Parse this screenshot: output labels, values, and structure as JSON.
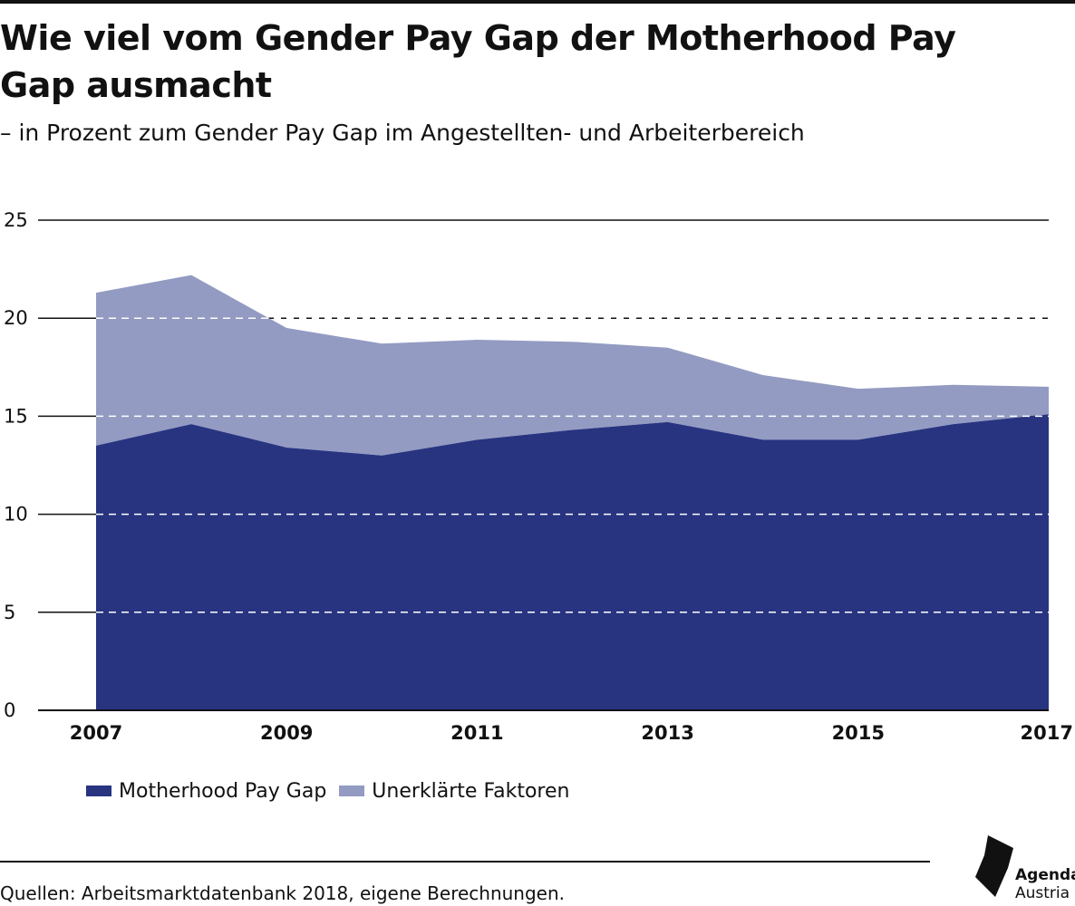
{
  "title": "Wie viel vom Gender Pay Gap der Motherhood Pay Gap ausmacht",
  "subtitle": "– in Prozent zum Gender Pay Gap im Angestellten- und Arbeiterbereich",
  "colors": {
    "motherhood": "#283480",
    "unexplained": "#939bc2",
    "axis": "#111111",
    "grid_over_area": "#ffffff"
  },
  "chart_data": {
    "type": "area",
    "stacked": true,
    "x": [
      2007,
      2008,
      2009,
      2010,
      2011,
      2012,
      2013,
      2014,
      2015,
      2016,
      2017
    ],
    "x_tick_labels": [
      "2007",
      "2009",
      "2011",
      "2013",
      "2015",
      "2017"
    ],
    "y_tick_labels": [
      "0",
      "5",
      "10",
      "15",
      "20",
      "25"
    ],
    "ylim": [
      0,
      25
    ],
    "grid": true,
    "legend_position": "bottom-left",
    "series": [
      {
        "name": "Motherhood Pay Gap",
        "values": [
          13.5,
          14.6,
          13.4,
          13.0,
          13.8,
          14.3,
          14.7,
          13.8,
          13.8,
          14.6,
          15.1
        ]
      },
      {
        "name": "Unerklärte Faktoren",
        "values": [
          7.8,
          7.6,
          6.1,
          5.7,
          5.1,
          4.5,
          3.8,
          3.3,
          2.6,
          2.0,
          1.4
        ]
      }
    ],
    "totals": [
      21.3,
      22.2,
      19.5,
      18.7,
      18.9,
      18.8,
      18.5,
      17.1,
      16.4,
      16.6,
      16.5
    ]
  },
  "source": "Quellen: Arbeitsmarktdatenbank 2018, eigene Berechnungen.",
  "logo": {
    "line1": "Agenda",
    "line2": "Austria"
  }
}
